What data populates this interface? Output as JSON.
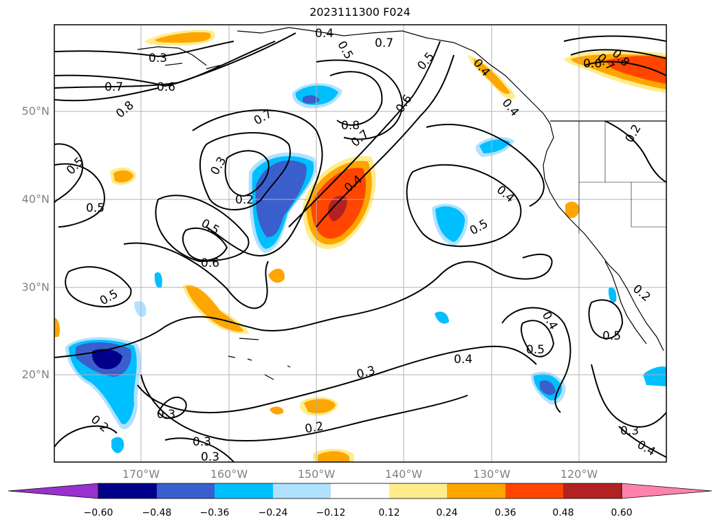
{
  "title": "2023111300 F024",
  "lat_labels": [
    "50°N",
    "40°N",
    "30°N",
    "20°N"
  ],
  "lon_labels": [
    "170°W",
    "160°W",
    "150°W",
    "140°W",
    "130°W",
    "120°W"
  ],
  "contour_labels": [
    "0.3",
    "0.4",
    "0.5",
    "0.7",
    "0.5",
    "0.7",
    "0.6",
    "0.8",
    "0.5",
    "0.6",
    "0.7",
    "0.8",
    "0.5",
    "0.7",
    "0.3",
    "0.2",
    "0.8",
    "0.7",
    "0.6",
    "0.4",
    "0.4",
    "0.5",
    "0.5",
    "0.6",
    "0.5",
    "0.4",
    "0.5",
    "0.3",
    "0.3",
    "0.2",
    "0.2",
    "0.3",
    "0.4",
    "0.5",
    "0.4",
    "0.3",
    "0.4",
    "0.2",
    "0.3",
    "0.4",
    "0.2",
    "0.5",
    "0.6",
    "0.8",
    "0.4"
  ],
  "colorbar": {
    "ticks": [
      "−0.60",
      "−0.48",
      "−0.36",
      "−0.24",
      "−0.12",
      "0.12",
      "0.24",
      "0.36",
      "0.48",
      "0.60"
    ],
    "colors": [
      "#9932cc",
      "#00008b",
      "#3a5fcd",
      "#00bfff",
      "#b0e2ff",
      "#ffffff",
      "#ffec8b",
      "#ffa500",
      "#ff4500",
      "#b22222",
      "#ff82ab"
    ]
  },
  "fill_colors": {
    "neg1": "#b0e2ff",
    "neg2": "#00bfff",
    "neg3": "#3a5fcd",
    "neg4": "#00008b",
    "pos1": "#ffec8b",
    "pos2": "#ffa500",
    "pos3": "#ff4500",
    "pos4": "#b22222"
  }
}
